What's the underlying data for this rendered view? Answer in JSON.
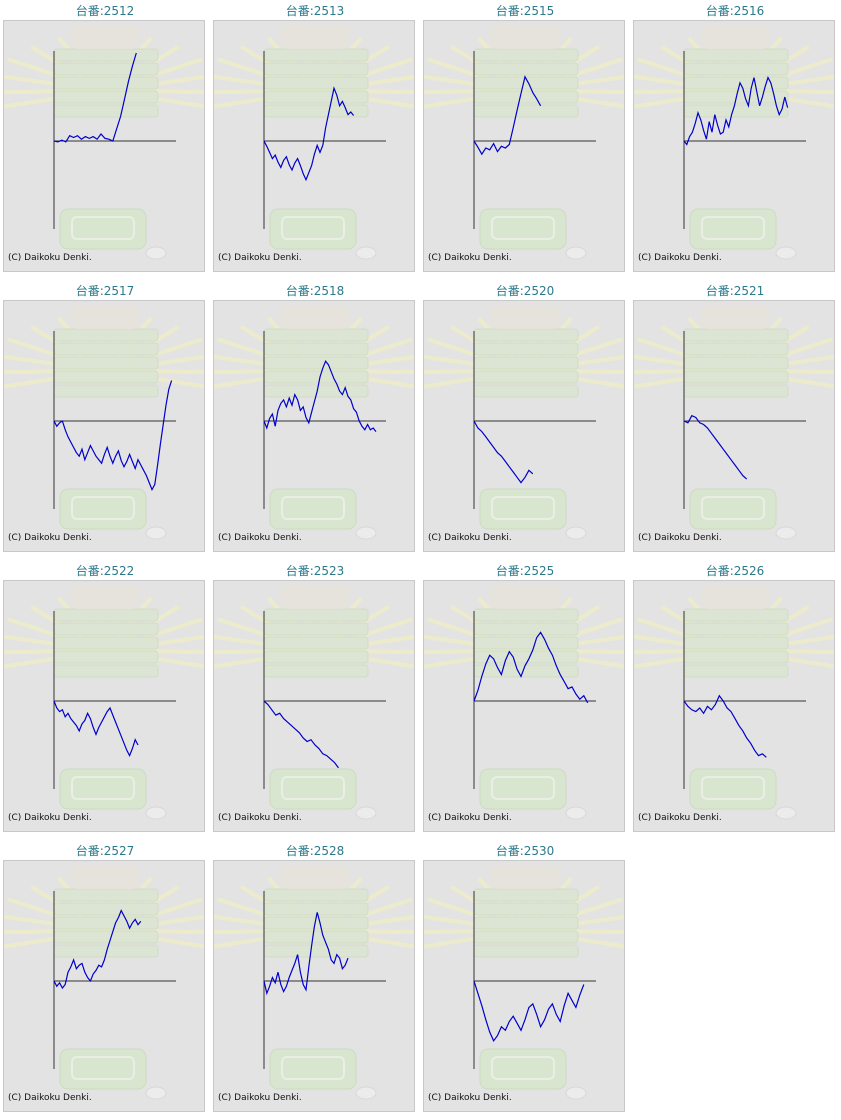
{
  "title_prefix": "台番:",
  "copyright": "(C) Daikoku Denki.",
  "line_color": "#0000cc",
  "axis_color": "#333333",
  "chart_data": [
    {
      "type": "line",
      "title": "台番:2512",
      "values": [
        0,
        -1,
        1,
        -1,
        6,
        4,
        6,
        2,
        5,
        3,
        5,
        2,
        8,
        3,
        2,
        0,
        14,
        28,
        48,
        68,
        85,
        100
      ]
    },
    {
      "type": "line",
      "title": "台番:2513",
      "values": [
        0,
        -6,
        -13,
        -20,
        -16,
        -24,
        -30,
        -22,
        -18,
        -27,
        -33,
        -25,
        -20,
        -28,
        -37,
        -44,
        -36,
        -28,
        -15,
        -5,
        -13,
        -5,
        15,
        30,
        45,
        60,
        52,
        40,
        45,
        38,
        30,
        33,
        29
      ]
    },
    {
      "type": "line",
      "title": "台番:2515",
      "values": [
        0,
        -7,
        -15,
        -8,
        -10,
        -3,
        -12,
        -6,
        -8,
        -4,
        15,
        35,
        54,
        73,
        65,
        55,
        48,
        40
      ]
    },
    {
      "type": "line",
      "title": "台番:2516",
      "values": [
        0,
        -4,
        5,
        10,
        20,
        32,
        24,
        12,
        2,
        22,
        10,
        30,
        18,
        8,
        10,
        24,
        16,
        30,
        40,
        54,
        66,
        60,
        48,
        40,
        60,
        72,
        56,
        40,
        50,
        62,
        72,
        66,
        54,
        40,
        30,
        36,
        50,
        38
      ]
    },
    {
      "type": "line",
      "title": "台番:2517",
      "values": [
        0,
        -6,
        -2,
        0,
        -10,
        -18,
        -24,
        -30,
        -36,
        -40,
        -32,
        -44,
        -36,
        -28,
        -34,
        -40,
        -44,
        -48,
        -38,
        -30,
        -40,
        -48,
        -40,
        -34,
        -45,
        -52,
        -46,
        -38,
        -46,
        -54,
        -44,
        -50,
        -56,
        -62,
        -70,
        -78,
        -72,
        -50,
        -26,
        -4,
        18,
        36,
        46
      ]
    },
    {
      "type": "line",
      "title": "台番:2518",
      "values": [
        0,
        -8,
        3,
        8,
        -6,
        12,
        20,
        24,
        16,
        26,
        18,
        30,
        24,
        12,
        16,
        4,
        -2,
        10,
        22,
        34,
        50,
        60,
        68,
        64,
        56,
        48,
        42,
        34,
        30,
        38,
        28,
        24,
        14,
        10,
        0,
        -6,
        -10,
        -4,
        -10,
        -8,
        -12
      ]
    },
    {
      "type": "line",
      "title": "台番:2520",
      "values": [
        0,
        -8,
        -12,
        -18,
        -24,
        -30,
        -36,
        -40,
        -46,
        -52,
        -58,
        -64,
        -70,
        -64,
        -56,
        -60
      ]
    },
    {
      "type": "line",
      "title": "台番:2521",
      "values": [
        0,
        -2,
        6,
        4,
        -2,
        -4,
        -8,
        -14,
        -20,
        -26,
        -32,
        -38,
        -44,
        -50,
        -56,
        -62,
        -66
      ]
    },
    {
      "type": "line",
      "title": "台番:2522",
      "values": [
        0,
        -8,
        -12,
        -10,
        -18,
        -14,
        -20,
        -24,
        -28,
        -34,
        -26,
        -22,
        -14,
        -20,
        -30,
        -38,
        -30,
        -24,
        -18,
        -12,
        -8,
        -16,
        -24,
        -32,
        -40,
        -48,
        -56,
        -62,
        -54,
        -44,
        -50
      ]
    },
    {
      "type": "line",
      "title": "台番:2523",
      "values": [
        0,
        -4,
        -10,
        -16,
        -14,
        -20,
        -24,
        -28,
        -32,
        -36,
        -42,
        -46,
        -44,
        -50,
        -54,
        -60,
        -62,
        -66,
        -70,
        -76
      ]
    },
    {
      "type": "line",
      "title": "台番:2525",
      "values": [
        0,
        12,
        28,
        42,
        52,
        48,
        38,
        30,
        46,
        56,
        50,
        36,
        28,
        40,
        48,
        58,
        72,
        78,
        70,
        60,
        52,
        40,
        30,
        22,
        14,
        16,
        8,
        2,
        6,
        -2
      ]
    },
    {
      "type": "line",
      "title": "台番:2526",
      "values": [
        0,
        -6,
        -10,
        -12,
        -8,
        -14,
        -6,
        -10,
        -4,
        6,
        0,
        -8,
        -12,
        -20,
        -28,
        -34,
        -42,
        -48,
        -56,
        -62,
        -60,
        -64
      ]
    },
    {
      "type": "line",
      "title": "台番:2527",
      "values": [
        0,
        -6,
        -2,
        -8,
        -4,
        10,
        16,
        24,
        14,
        18,
        20,
        10,
        4,
        0,
        8,
        12,
        18,
        16,
        24,
        36,
        46,
        56,
        66,
        72,
        80,
        74,
        68,
        60,
        66,
        70,
        64,
        68
      ]
    },
    {
      "type": "line",
      "title": "台番:2528",
      "values": [
        0,
        -14,
        -6,
        4,
        -2,
        10,
        -4,
        -12,
        -6,
        4,
        12,
        20,
        30,
        10,
        -4,
        -10,
        16,
        40,
        62,
        78,
        66,
        52,
        44,
        36,
        24,
        20,
        30,
        26,
        14,
        18,
        26
      ]
    },
    {
      "type": "line",
      "title": "台番:2530",
      "values": [
        0,
        -14,
        -28,
        -44,
        -58,
        -68,
        -62,
        -52,
        -56,
        -46,
        -40,
        -48,
        -56,
        -44,
        -30,
        -26,
        -38,
        -52,
        -44,
        -32,
        -26,
        -38,
        -46,
        -28,
        -14,
        -22,
        -30,
        -16,
        -4
      ]
    }
  ]
}
